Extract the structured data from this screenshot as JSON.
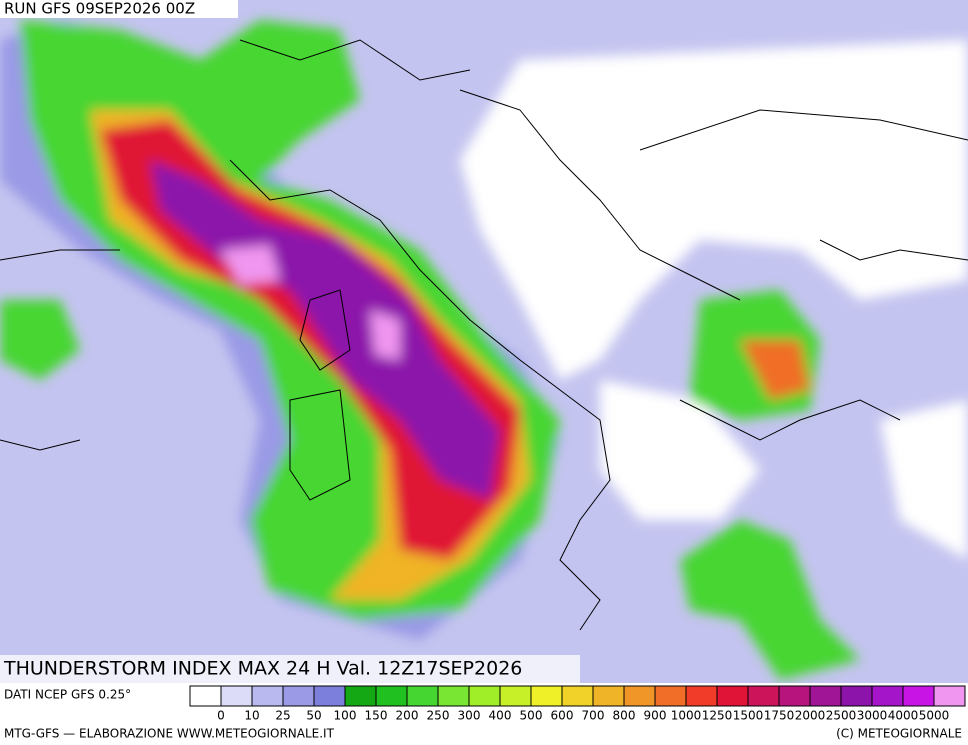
{
  "header": {
    "run": "RUN GFS 09SEP2026 00Z"
  },
  "title": "THUNDERSTORM INDEX MAX 24 H Val. 12Z17SEP2026",
  "source": "DATI NCEP GFS 0.25°",
  "legend": {
    "ticks": [
      0,
      10,
      25,
      50,
      100,
      150,
      200,
      250,
      300,
      400,
      500,
      600,
      700,
      800,
      900,
      1000,
      1250,
      1500,
      1750,
      2000,
      2500,
      3000,
      4000,
      5000
    ],
    "colors": [
      "#ffffff",
      "#dcdcf8",
      "#b9b9f0",
      "#9a9ae6",
      "#7c80dc",
      "#14a814",
      "#20c020",
      "#46d632",
      "#78e632",
      "#a0ee28",
      "#c8f028",
      "#f0f028",
      "#f0d228",
      "#f0b428",
      "#f09628",
      "#f06e28",
      "#f03c28",
      "#e01436",
      "#cc145a",
      "#b8147e",
      "#a01496",
      "#8c14aa",
      "#a414c8",
      "#c814e4",
      "#f096f0"
    ]
  },
  "footer": {
    "left": "MTG-GFS — ELABORAZIONE WWW.METEOGIORNALE.IT",
    "right": "(C) METEOGIORNALE"
  }
}
